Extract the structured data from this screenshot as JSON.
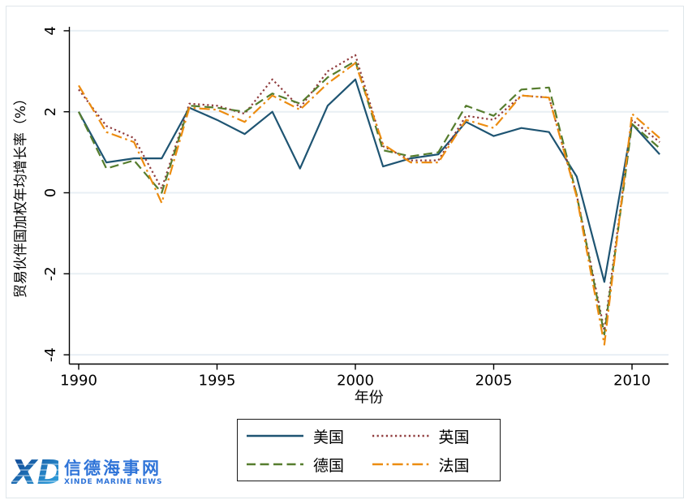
{
  "figure": {
    "ylabel": "贸易伙伴国加权年均增长率（%）",
    "xlabel": "年份",
    "y_ticks": [
      4,
      2,
      0,
      -2,
      -4
    ],
    "x_ticks": [
      1990,
      1995,
      2000,
      2005,
      2010
    ],
    "grid_color": "#e8eff4",
    "axis_color": "#000000"
  },
  "chart_data": {
    "type": "line",
    "x": [
      1990,
      1991,
      1992,
      1993,
      1994,
      1995,
      1996,
      1997,
      1998,
      1999,
      2000,
      2001,
      2002,
      2003,
      2004,
      2005,
      2006,
      2007,
      2008,
      2009,
      2010,
      2011
    ],
    "series": [
      {
        "name": "美国",
        "color": "#1e5472",
        "dash": "solid",
        "values": [
          2.0,
          0.75,
          0.85,
          0.85,
          2.1,
          1.8,
          1.45,
          2.0,
          0.6,
          2.15,
          2.8,
          0.65,
          0.85,
          0.95,
          1.75,
          1.4,
          1.6,
          1.5,
          0.4,
          -2.2,
          1.7,
          0.95
        ]
      },
      {
        "name": "英国",
        "color": "#8f3b3c",
        "dash": "dotted",
        "values": [
          2.55,
          1.65,
          1.35,
          0.1,
          2.2,
          2.15,
          1.95,
          2.8,
          2.1,
          3.0,
          3.4,
          1.15,
          0.8,
          0.8,
          1.9,
          1.8,
          2.4,
          2.35,
          -0.05,
          -3.4,
          1.8,
          1.25
        ]
      },
      {
        "name": "德国",
        "color": "#567d2e",
        "dash": "dashed",
        "values": [
          2.0,
          0.6,
          0.8,
          0.0,
          2.15,
          2.1,
          2.0,
          2.45,
          2.2,
          2.85,
          3.25,
          1.05,
          0.9,
          1.0,
          2.15,
          1.9,
          2.55,
          2.6,
          -0.05,
          -3.5,
          1.7,
          1.1
        ]
      },
      {
        "name": "法国",
        "color": "#ec8c10",
        "dash": "dashdot",
        "values": [
          2.65,
          1.5,
          1.25,
          -0.25,
          2.1,
          2.05,
          1.75,
          2.4,
          2.05,
          2.7,
          3.2,
          1.2,
          0.75,
          0.75,
          1.8,
          1.6,
          2.4,
          2.35,
          -0.1,
          -3.75,
          1.95,
          1.35
        ]
      }
    ],
    "title": "",
    "xlabel": "年份",
    "ylabel": "贸易伙伴国加权年均增长率（%）",
    "ylim": [
      -4,
      4
    ],
    "xlim": [
      1990,
      2011
    ],
    "grid": true,
    "legend_position": "bottom"
  },
  "watermark": {
    "logo_text": "XD",
    "title": "信德海事网",
    "subtitle": "XINDE MARINE NEWS",
    "color": "#2f74d8",
    "gradient_start": "#0b3e8d",
    "gradient_end": "#35aee8"
  }
}
